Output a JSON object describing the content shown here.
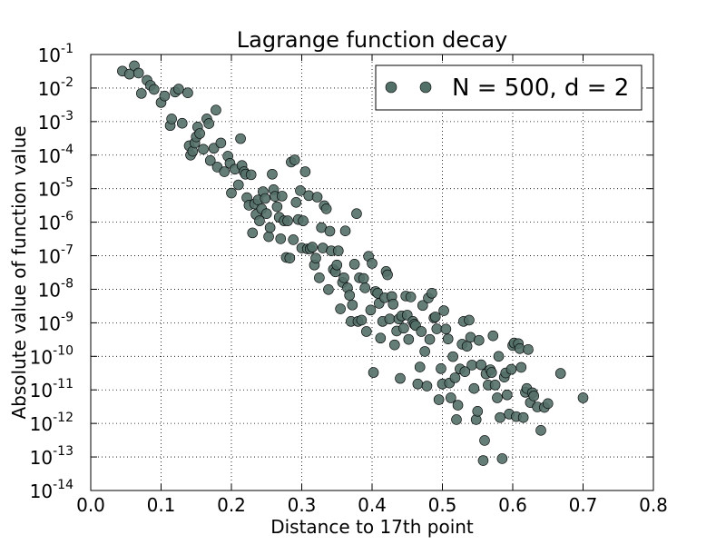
{
  "chart_data": {
    "type": "scatter",
    "title": "Lagrange function decay",
    "xlabel": "Distance to 17th point",
    "ylabel": "Absolute value of function value",
    "xlim": [
      0.0,
      0.8
    ],
    "ylim": [
      1e-14,
      0.1
    ],
    "yscale": "log",
    "grid": true,
    "legend_position": "top-right",
    "x_ticks": [
      "0.0",
      "0.1",
      "0.2",
      "0.3",
      "0.4",
      "0.5",
      "0.6",
      "0.7",
      "0.8"
    ],
    "y_ticks": [
      {
        "base": "10",
        "exp": "-14"
      },
      {
        "base": "10",
        "exp": "-13"
      },
      {
        "base": "10",
        "exp": "-12"
      },
      {
        "base": "10",
        "exp": "-11"
      },
      {
        "base": "10",
        "exp": "-10"
      },
      {
        "base": "10",
        "exp": "-9"
      },
      {
        "base": "10",
        "exp": "-8"
      },
      {
        "base": "10",
        "exp": "-7"
      },
      {
        "base": "10",
        "exp": "-6"
      },
      {
        "base": "10",
        "exp": "-5"
      },
      {
        "base": "10",
        "exp": "-4"
      },
      {
        "base": "10",
        "exp": "-3"
      },
      {
        "base": "10",
        "exp": "-2"
      },
      {
        "base": "10",
        "exp": "-1"
      }
    ],
    "series": [
      {
        "name": "N = 500, d = 2",
        "marker_color": "#537068",
        "points": [
          [
            0.045,
            0.032
          ],
          [
            0.055,
            0.026
          ],
          [
            0.062,
            0.046
          ],
          [
            0.068,
            0.028
          ],
          [
            0.072,
            0.0069
          ],
          [
            0.08,
            0.017
          ],
          [
            0.085,
            0.012
          ],
          [
            0.09,
            0.0091
          ],
          [
            0.1,
            0.0037
          ],
          [
            0.105,
            0.0058
          ],
          [
            0.113,
            0.00076
          ],
          [
            0.115,
            0.0012
          ],
          [
            0.12,
            0.0076
          ],
          [
            0.125,
            0.0093
          ],
          [
            0.13,
            0.00089
          ],
          [
            0.138,
            0.0072
          ],
          [
            0.14,
            0.00019
          ],
          [
            0.142,
            0.0001
          ],
          [
            0.145,
            0.00013
          ],
          [
            0.148,
            0.00023
          ],
          [
            0.15,
            0.00035
          ],
          [
            0.152,
            0.00069
          ],
          [
            0.155,
            0.00044
          ],
          [
            0.16,
            0.00015
          ],
          [
            0.165,
            0.0012
          ],
          [
            0.168,
            0.00087
          ],
          [
            0.17,
            6.9e-05
          ],
          [
            0.175,
            0.00016
          ],
          [
            0.178,
            0.0022
          ],
          [
            0.18,
            4.4e-05
          ],
          [
            0.185,
            0.00023
          ],
          [
            0.19,
            3.2e-05
          ],
          [
            0.195,
            9.3e-05
          ],
          [
            0.198,
            5.7e-05
          ],
          [
            0.2,
            7.4e-06
          ],
          [
            0.205,
            3.8e-05
          ],
          [
            0.21,
            1.3e-05
          ],
          [
            0.213,
            0.00031
          ],
          [
            0.215,
            4.9e-05
          ],
          [
            0.218,
            3.2e-05
          ],
          [
            0.22,
            2.7e-05
          ],
          [
            0.222,
            5.4e-06
          ],
          [
            0.225,
            3.2e-06
          ],
          [
            0.228,
            2.6e-05
          ],
          [
            0.23,
            4.8e-07
          ],
          [
            0.233,
            3.5e-06
          ],
          [
            0.235,
            1.7e-06
          ],
          [
            0.238,
            4.6e-06
          ],
          [
            0.24,
            1.1e-06
          ],
          [
            0.243,
            2.5e-06
          ],
          [
            0.245,
            8.1e-06
          ],
          [
            0.248,
            5.1e-06
          ],
          [
            0.25,
            1.8e-06
          ],
          [
            0.253,
            3.7e-07
          ],
          [
            0.255,
            6.9e-07
          ],
          [
            0.258,
            2.7e-05
          ],
          [
            0.26,
            9.3e-06
          ],
          [
            0.262,
            5.9e-06
          ],
          [
            0.265,
            2.9e-06
          ],
          [
            0.268,
            1.4e-06
          ],
          [
            0.27,
            3.2e-07
          ],
          [
            0.272,
            6e-06
          ],
          [
            0.275,
            1.1e-06
          ],
          [
            0.278,
            8.9e-08
          ],
          [
            0.28,
            1.1e-06
          ],
          [
            0.283,
            8.5e-08
          ],
          [
            0.285,
            6.2e-05
          ],
          [
            0.288,
            3e-07
          ],
          [
            0.29,
            7.2e-05
          ],
          [
            0.292,
            3.9e-06
          ],
          [
            0.295,
            1.2e-06
          ],
          [
            0.298,
            8.7e-06
          ],
          [
            0.3,
            1.7e-07
          ],
          [
            0.302,
            1.1e-06
          ],
          [
            0.305,
            3.2e-05
          ],
          [
            0.308,
            1.6e-07
          ],
          [
            0.31,
            6.2e-06
          ],
          [
            0.312,
            1.6e-07
          ],
          [
            0.315,
            1.8e-07
          ],
          [
            0.318,
            5.3e-08
          ],
          [
            0.32,
            8.5e-08
          ],
          [
            0.322,
            5.6e-06
          ],
          [
            0.325,
            2.2e-08
          ],
          [
            0.328,
            6.9e-07
          ],
          [
            0.33,
            1.7e-07
          ],
          [
            0.332,
            3.1e-06
          ],
          [
            0.335,
            2.5e-06
          ],
          [
            0.338,
            9.8e-09
          ],
          [
            0.34,
            5.4e-07
          ],
          [
            0.342,
            1.4e-07
          ],
          [
            0.345,
            3.9e-08
          ],
          [
            0.348,
            3.3e-08
          ],
          [
            0.35,
            5.3e-08
          ],
          [
            0.352,
            1.4e-07
          ],
          [
            0.355,
            2.6e-09
          ],
          [
            0.358,
            1.6e-08
          ],
          [
            0.36,
            2.2e-08
          ],
          [
            0.362,
            5.5e-07
          ],
          [
            0.365,
            1.1e-08
          ],
          [
            0.368,
            6.6e-09
          ],
          [
            0.37,
            1.1e-09
          ],
          [
            0.372,
            3.4e-09
          ],
          [
            0.375,
            5.6e-08
          ],
          [
            0.378,
            1.8e-06
          ],
          [
            0.38,
            1.1e-09
          ],
          [
            0.382,
            2.2e-08
          ],
          [
            0.385,
            1.2e-09
          ],
          [
            0.388,
            2.1e-08
          ],
          [
            0.39,
            1.1e-08
          ],
          [
            0.392,
            5.5e-10
          ],
          [
            0.395,
            9.6e-08
          ],
          [
            0.398,
            2.4e-09
          ],
          [
            0.4,
            5.9e-08
          ],
          [
            0.402,
            3.3e-11
          ],
          [
            0.405,
            8.6e-09
          ],
          [
            0.408,
            7.6e-09
          ],
          [
            0.41,
            3.8e-09
          ],
          [
            0.412,
            3.5e-10
          ],
          [
            0.415,
            1.1e-09
          ],
          [
            0.418,
            5.6e-09
          ],
          [
            0.42,
            3.4e-08
          ],
          [
            0.422,
            2.7e-08
          ],
          [
            0.425,
            1.3e-09
          ],
          [
            0.428,
            6.1e-09
          ],
          [
            0.43,
            3.6e-09
          ],
          [
            0.432,
            2.2e-10
          ],
          [
            0.435,
            5.7e-10
          ],
          [
            0.438,
            1.3e-09
          ],
          [
            0.44,
            2.2e-11
          ],
          [
            0.442,
            1.6e-09
          ],
          [
            0.445,
            6.9e-10
          ],
          [
            0.448,
            6.3e-09
          ],
          [
            0.45,
            1.7e-09
          ],
          [
            0.452,
            3.2e-10
          ],
          [
            0.455,
            5.9e-09
          ],
          [
            0.458,
            1.1e-09
          ],
          [
            0.46,
            9.1e-10
          ],
          [
            0.462,
            8.3e-10
          ],
          [
            0.465,
            1.5e-11
          ],
          [
            0.468,
            4.8e-11
          ],
          [
            0.47,
            5.5e-10
          ],
          [
            0.472,
            3.3e-09
          ],
          [
            0.475,
            1.4e-10
          ],
          [
            0.478,
            1.3e-11
          ],
          [
            0.48,
            5.5e-09
          ],
          [
            0.482,
            3.2e-10
          ],
          [
            0.485,
            7.6e-09
          ],
          [
            0.488,
            1.4e-09
          ],
          [
            0.49,
            1.5e-09
          ],
          [
            0.492,
            6.6e-10
          ],
          [
            0.495,
            5.1e-12
          ],
          [
            0.498,
            4.3e-11
          ],
          [
            0.5,
            1.5e-11
          ],
          [
            0.502,
            2.3e-09
          ],
          [
            0.505,
            6.5e-10
          ],
          [
            0.508,
            3.3e-10
          ],
          [
            0.51,
            1.6e-11
          ],
          [
            0.512,
            5.8e-12
          ],
          [
            0.515,
            9.8e-11
          ],
          [
            0.518,
            2.3e-11
          ],
          [
            0.52,
            1.3e-12
          ],
          [
            0.522,
            3.5e-12
          ],
          [
            0.525,
            4.2e-11
          ],
          [
            0.528,
            2.3e-10
          ],
          [
            0.53,
            1.1e-09
          ],
          [
            0.532,
            3.5e-11
          ],
          [
            0.535,
            2e-10
          ],
          [
            0.538,
            1.2e-09
          ],
          [
            0.54,
            3.7e-10
          ],
          [
            0.542,
            5.5e-11
          ],
          [
            0.545,
            1.1e-11
          ],
          [
            0.548,
            1.3e-12
          ],
          [
            0.55,
            2.3e-12
          ],
          [
            0.552,
            3e-10
          ],
          [
            0.555,
            5.6e-11
          ],
          [
            0.558,
            7.8e-14
          ],
          [
            0.56,
            3.1e-13
          ],
          [
            0.562,
            3e-11
          ],
          [
            0.565,
            1.4e-11
          ],
          [
            0.568,
            4e-11
          ],
          [
            0.57,
            3.3e-11
          ],
          [
            0.572,
            4.1e-10
          ],
          [
            0.575,
            1.4e-11
          ],
          [
            0.578,
            5.8e-12
          ],
          [
            0.58,
            1e-10
          ],
          [
            0.582,
            1.5e-12
          ],
          [
            0.585,
            8.9e-14
          ],
          [
            0.588,
            2.4e-11
          ],
          [
            0.59,
            3.2e-11
          ],
          [
            0.592,
            7.1e-12
          ],
          [
            0.595,
            1.9e-12
          ],
          [
            0.598,
            4.1e-11
          ],
          [
            0.6,
            2.1e-10
          ],
          [
            0.602,
            2.5e-10
          ],
          [
            0.605,
            1.6e-12
          ],
          [
            0.608,
            2.4e-10
          ],
          [
            0.61,
            1.7e-10
          ],
          [
            0.612,
            4.7e-11
          ],
          [
            0.615,
            1.5e-12
          ],
          [
            0.618,
            8.5e-12
          ],
          [
            0.62,
            1.1e-11
          ],
          [
            0.622,
            1.6e-10
          ],
          [
            0.625,
            4.2e-12
          ],
          [
            0.628,
            8.2e-12
          ],
          [
            0.63,
            6.6e-12
          ],
          [
            0.635,
            3.1e-12
          ],
          [
            0.64,
            6.2e-13
          ],
          [
            0.645,
            3e-12
          ],
          [
            0.65,
            3.9e-12
          ],
          [
            0.668,
            3.1e-11
          ],
          [
            0.7,
            5.8e-12
          ]
        ]
      }
    ]
  }
}
